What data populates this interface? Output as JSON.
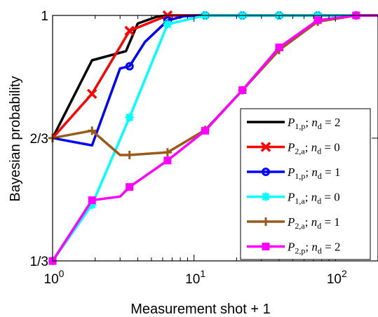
{
  "chart_data": {
    "type": "line",
    "xlabel": "Measurement shot + 1",
    "ylabel": "Bayesian probability",
    "xscale": "log",
    "xlim": [
      1,
      200
    ],
    "ylim": [
      0.3333,
      1.0
    ],
    "x_ticks": [
      {
        "value": 1,
        "base": "10",
        "exp": "0"
      },
      {
        "value": 10,
        "base": "10",
        "exp": "1"
      },
      {
        "value": 100,
        "base": "10",
        "exp": "2"
      }
    ],
    "y_ticks": [
      {
        "value": 0.3333,
        "label": "1/3"
      },
      {
        "value": 0.6667,
        "label": "2/3"
      },
      {
        "value": 1.0,
        "label": "1"
      }
    ],
    "grid": false,
    "legend_position": "center-right",
    "series": [
      {
        "name": "P1,p; nd = 2",
        "sub": "1,p",
        "nd": "2",
        "color": "#000000",
        "marker": "none",
        "x": [
          1,
          1.9,
          3.3,
          4.0,
          5.5,
          6.5,
          12,
          22,
          40,
          75,
          140,
          200
        ],
        "y": [
          0.667,
          0.878,
          0.903,
          0.978,
          0.997,
          1.0,
          1.0,
          1.0,
          1.0,
          1.0,
          1.0,
          1.0
        ]
      },
      {
        "name": "P2,a; nd = 0",
        "sub": "2,a",
        "nd": "0",
        "color": "#ff0000",
        "marker": "x",
        "x": [
          1,
          1.9,
          3.5,
          6.5,
          12,
          22,
          40,
          75,
          140,
          200
        ],
        "y": [
          0.667,
          0.787,
          0.958,
          1.0,
          1.0,
          1.0,
          1.0,
          1.0,
          1.0,
          1.0
        ],
        "marker_x": [
          1.9,
          3.5,
          6.5
        ]
      },
      {
        "name": "P1,p; nd = 1",
        "sub": "1,p",
        "nd": "1",
        "color": "#0000ff",
        "marker": "o",
        "x": [
          1,
          1.9,
          3.0,
          3.5,
          4.5,
          6.5,
          8.5,
          12,
          22,
          40,
          75,
          140,
          200
        ],
        "y": [
          0.667,
          0.647,
          0.856,
          0.862,
          0.928,
          0.986,
          0.998,
          1.0,
          1.0,
          1.0,
          1.0,
          1.0,
          1.0
        ],
        "marker_x": [
          3.5,
          6.5,
          12,
          22,
          40,
          75,
          140
        ]
      },
      {
        "name": "P1,a; nd = 0",
        "sub": "1,a",
        "nd": "0",
        "color": "#00ffff",
        "marker": "*",
        "x": [
          1,
          1.9,
          3.5,
          6.5,
          12,
          22,
          40,
          75,
          140,
          200
        ],
        "y": [
          0.333,
          0.486,
          0.723,
          0.976,
          1.0,
          1.0,
          1.0,
          1.0,
          1.0,
          1.0
        ],
        "marker_x": [
          1,
          1.9,
          3.5,
          6.5,
          12,
          22,
          40,
          75,
          140
        ]
      },
      {
        "name": "P2,a; nd = 1",
        "sub": "2,a",
        "nd": "1",
        "color": "#9a5a1a",
        "marker": "+",
        "x": [
          1,
          1.9,
          3.0,
          3.5,
          6.5,
          12,
          22,
          40,
          75,
          140,
          200
        ],
        "y": [
          0.667,
          0.687,
          0.621,
          0.621,
          0.628,
          0.689,
          0.797,
          0.906,
          0.983,
          1.0,
          1.0
        ],
        "marker_x": [
          1,
          1.9,
          3.5,
          6.5,
          12,
          22,
          40,
          75,
          140
        ]
      },
      {
        "name": "P2,p; nd = 2",
        "sub": "2,p",
        "nd": "2",
        "color": "#ff00ff",
        "marker": "s",
        "x": [
          1,
          1.9,
          3.0,
          3.5,
          6.5,
          12,
          22,
          40,
          75,
          140,
          200
        ],
        "y": [
          0.333,
          0.498,
          0.508,
          0.534,
          0.606,
          0.687,
          0.797,
          0.913,
          0.987,
          1.0,
          1.0
        ],
        "marker_x": [
          1,
          1.9,
          3.5,
          6.5,
          12,
          22,
          40,
          75,
          140
        ]
      }
    ]
  }
}
